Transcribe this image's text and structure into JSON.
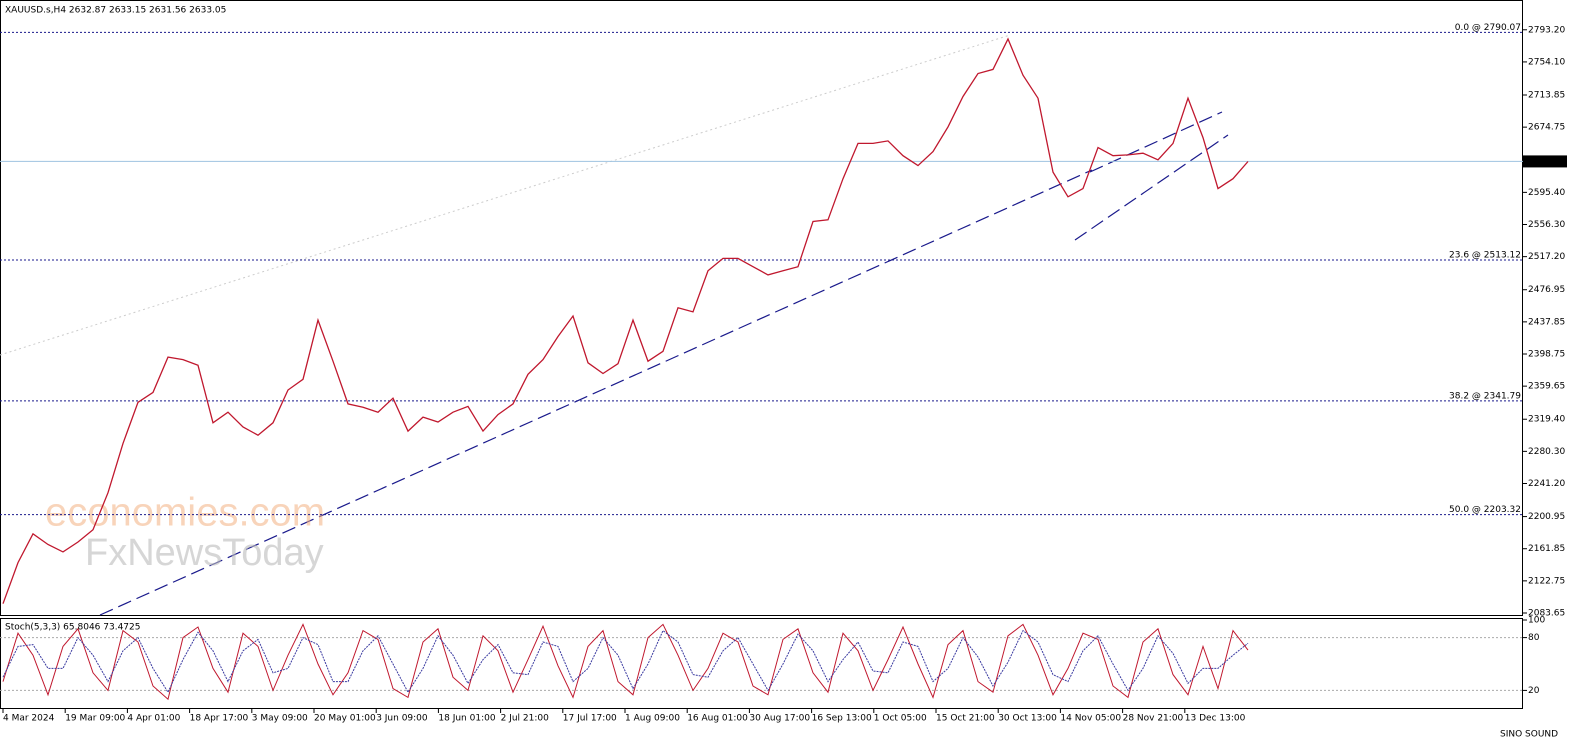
{
  "chart_data": {
    "type": "line",
    "title": "XAUUSD.s,H4  2632.87 2633.15 2631.56 2633.05",
    "ylim": [
      2080,
      2827
    ],
    "yticks": [
      {
        "value": 2793.2,
        "label": "2793.20"
      },
      {
        "value": 2754.1,
        "label": "2754.10"
      },
      {
        "value": 2713.85,
        "label": "2713.85"
      },
      {
        "value": 2674.75,
        "label": "2674.75"
      },
      {
        "value": 2595.4,
        "label": "2595.40"
      },
      {
        "value": 2556.3,
        "label": "2556.30"
      },
      {
        "value": 2517.2,
        "label": "2517.20"
      },
      {
        "value": 2476.95,
        "label": "2476.95"
      },
      {
        "value": 2437.85,
        "label": "2437.85"
      },
      {
        "value": 2398.75,
        "label": "2398.75"
      },
      {
        "value": 2359.65,
        "label": "2359.65"
      },
      {
        "value": 2319.4,
        "label": "2319.40"
      },
      {
        "value": 2280.3,
        "label": "2280.30"
      },
      {
        "value": 2241.2,
        "label": "2241.20"
      },
      {
        "value": 2200.95,
        "label": "2200.95"
      },
      {
        "value": 2161.85,
        "label": "2161.85"
      },
      {
        "value": 2122.75,
        "label": "2122.75"
      },
      {
        "value": 2083.65,
        "label": "2083.65"
      }
    ],
    "current_price": {
      "value": 2633.05,
      "label": "2633.05"
    },
    "fib_levels": [
      {
        "value": 2790.07,
        "label": "0.0 @ 2790.07"
      },
      {
        "value": 2513.12,
        "label": "23.6 @ 2513.12"
      },
      {
        "value": 2341.79,
        "label": "38.2 @ 2341.79"
      },
      {
        "value": 2203.32,
        "label": "50.0 @ 2203.32"
      }
    ],
    "x_labels": [
      "4 Mar 2024",
      "19 Mar 09:00",
      "4 Apr 01:00",
      "18 Apr 17:00",
      "3 May 09:00",
      "20 May 01:00",
      "3 Jun 09:00",
      "18 Jun 01:00",
      "2 Jul 21:00",
      "17 Jul 17:00",
      "1 Aug 09:00",
      "16 Aug 01:00",
      "30 Aug 17:00",
      "16 Sep 13:00",
      "1 Oct 05:00",
      "15 Oct 21:00",
      "30 Oct 13:00",
      "14 Nov 05:00",
      "28 Nov 21:00",
      "13 Dec 13:00"
    ],
    "series": [
      {
        "color": "#c0182e",
        "values": [
          2095,
          2145,
          2180,
          2167,
          2158,
          2170,
          2185,
          2230,
          2290,
          2340,
          2352,
          2395,
          2392,
          2385,
          2315,
          2328,
          2310,
          2300,
          2315,
          2355,
          2368,
          2440,
          2390,
          2338,
          2334,
          2328,
          2345,
          2305,
          2322,
          2316,
          2328,
          2335,
          2305,
          2325,
          2338,
          2374,
          2392,
          2420,
          2445,
          2388,
          2375,
          2387,
          2440,
          2390,
          2402,
          2455,
          2450,
          2500,
          2515,
          2515,
          2505,
          2495,
          2500,
          2505,
          2560,
          2562,
          2612,
          2655,
          2655,
          2658,
          2640,
          2628,
          2645,
          2675,
          2712,
          2740,
          2745,
          2782,
          2738,
          2710,
          2620,
          2590,
          2600,
          2650,
          2640,
          2641,
          2643,
          2635,
          2655,
          2710,
          2662,
          2600,
          2612,
          2633
        ]
      }
    ],
    "indicator": {
      "label": "Stoch(5,3,3) 65.8046 73.4725",
      "ylim": [
        0,
        100
      ],
      "yticks": [
        100,
        80,
        20
      ],
      "levels": [
        80,
        20
      ],
      "series": [
        {
          "color": "#c0182e",
          "values": [
            30,
            85,
            60,
            15,
            70,
            90,
            40,
            20,
            88,
            75,
            25,
            10,
            80,
            92,
            45,
            18,
            85,
            70,
            20,
            60,
            95,
            50,
            15,
            40,
            88,
            78,
            22,
            12,
            75,
            90,
            35,
            20,
            82,
            65,
            18,
            55,
            93,
            48,
            12,
            70,
            88,
            30,
            15,
            80,
            95,
            60,
            20,
            45,
            85,
            75,
            25,
            15,
            78,
            90,
            40,
            18,
            85,
            65,
            20,
            55,
            92,
            50,
            12,
            72,
            88,
            30,
            18,
            82,
            95,
            60,
            15,
            45,
            85,
            78,
            25,
            12,
            75,
            90,
            38,
            15,
            70,
            22,
            88,
            65.8046
          ]
        },
        {
          "color": "#3a3aa0",
          "values": [
            35,
            70,
            72,
            45,
            45,
            80,
            60,
            30,
            65,
            80,
            45,
            18,
            55,
            86,
            65,
            30,
            65,
            78,
            40,
            45,
            80,
            72,
            30,
            30,
            65,
            82,
            50,
            18,
            45,
            82,
            60,
            28,
            55,
            72,
            40,
            38,
            75,
            70,
            30,
            45,
            80,
            60,
            22,
            50,
            88,
            75,
            38,
            35,
            65,
            80,
            50,
            20,
            50,
            84,
            65,
            30,
            55,
            75,
            42,
            40,
            75,
            70,
            30,
            45,
            80,
            58,
            25,
            52,
            88,
            75,
            38,
            30,
            65,
            82,
            50,
            20,
            45,
            82,
            62,
            28,
            45,
            45,
            60,
            73.4725
          ]
        }
      ]
    },
    "watermark": [
      "economies.com",
      "FxNewsToday"
    ],
    "logo": "SINO SOUND"
  }
}
